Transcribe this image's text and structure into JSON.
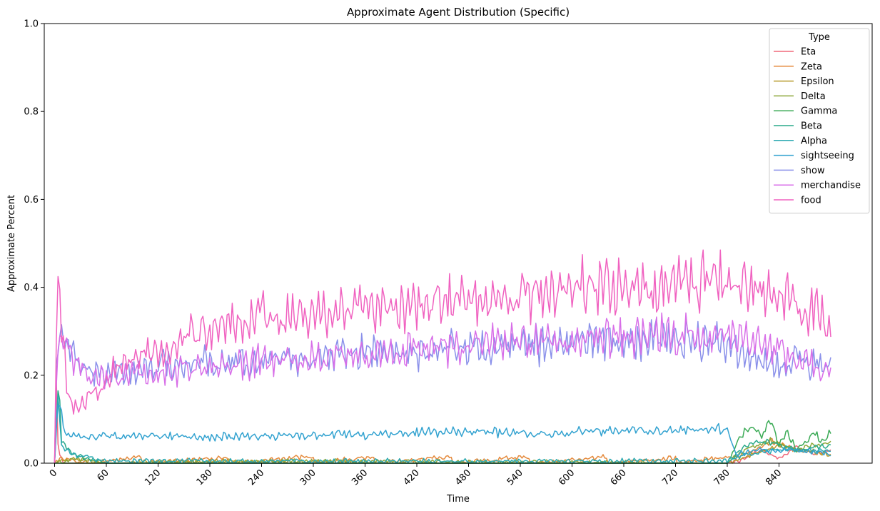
{
  "chart_data": {
    "type": "line",
    "title": "Approximate Agent Distribution (Specific)",
    "xlabel": "Time",
    "ylabel": "Approximate Percent",
    "xlim": [
      -12,
      948
    ],
    "ylim": [
      0,
      1
    ],
    "xticks": [
      0,
      60,
      120,
      180,
      240,
      300,
      360,
      420,
      480,
      540,
      600,
      660,
      720,
      780,
      840
    ],
    "yticks": [
      0.0,
      0.2,
      0.4,
      0.6,
      0.8,
      1.0
    ],
    "xtick_rotation": 45,
    "grid": false,
    "legend": {
      "title": "Type",
      "placement": "top-right"
    },
    "series": [
      {
        "name": "Eta",
        "color": "#f0687a",
        "points": [
          [
            0,
            0
          ],
          [
            1,
            0.3
          ],
          [
            3,
            0.05
          ],
          [
            6,
            0.02
          ],
          [
            10,
            0.0
          ],
          [
            60,
            0.0
          ],
          [
            780,
            0.0
          ],
          [
            800,
            0.01
          ],
          [
            820,
            0.03
          ],
          [
            840,
            0.01
          ],
          [
            860,
            0.04
          ],
          [
            880,
            0.02
          ],
          [
            900,
            0.03
          ]
        ]
      },
      {
        "name": "Zeta",
        "color": "#e58a3c",
        "points": [
          [
            0,
            0
          ],
          [
            5,
            0.01
          ],
          [
            40,
            0.0
          ],
          [
            100,
            0.015
          ],
          [
            101,
            0.0
          ],
          [
            200,
            0.012
          ],
          [
            201,
            0.0
          ],
          [
            300,
            0.015
          ],
          [
            301,
            0.0
          ],
          [
            370,
            0.015
          ],
          [
            371,
            0.0
          ],
          [
            460,
            0.015
          ],
          [
            461,
            0.0
          ],
          [
            550,
            0.015
          ],
          [
            551,
            0.0
          ],
          [
            640,
            0.015
          ],
          [
            641,
            0.0
          ],
          [
            720,
            0.012
          ],
          [
            721,
            0.0
          ],
          [
            800,
            0.02
          ],
          [
            830,
            0.05
          ],
          [
            860,
            0.03
          ],
          [
            900,
            0.02
          ]
        ]
      },
      {
        "name": "Epsilon",
        "color": "#b79a2a",
        "points": [
          [
            0,
            0
          ],
          [
            20,
            0.01
          ],
          [
            60,
            0.0
          ],
          [
            200,
            0.005
          ],
          [
            400,
            0.0
          ],
          [
            780,
            0.0
          ],
          [
            810,
            0.02
          ],
          [
            840,
            0.04
          ],
          [
            870,
            0.03
          ],
          [
            900,
            0.02
          ]
        ]
      },
      {
        "name": "Delta",
        "color": "#8da83a",
        "points": [
          [
            0,
            0
          ],
          [
            30,
            0.01
          ],
          [
            60,
            0.0
          ],
          [
            300,
            0.005
          ],
          [
            780,
            0.0
          ],
          [
            800,
            0.03
          ],
          [
            830,
            0.05
          ],
          [
            860,
            0.03
          ],
          [
            900,
            0.05
          ]
        ]
      },
      {
        "name": "Gamma",
        "color": "#3aaa55",
        "points": [
          [
            0,
            0
          ],
          [
            780,
            0.0
          ],
          [
            790,
            0.04
          ],
          [
            800,
            0.07
          ],
          [
            810,
            0.08
          ],
          [
            820,
            0.06
          ],
          [
            830,
            0.1
          ],
          [
            840,
            0.04
          ],
          [
            850,
            0.07
          ],
          [
            860,
            0.03
          ],
          [
            870,
            0.05
          ],
          [
            880,
            0.07
          ],
          [
            890,
            0.05
          ],
          [
            900,
            0.07
          ]
        ]
      },
      {
        "name": "Beta",
        "color": "#2aaa8a",
        "points": [
          [
            0,
            0
          ],
          [
            5,
            0.2
          ],
          [
            8,
            0.05
          ],
          [
            20,
            0.02
          ],
          [
            60,
            0.0
          ],
          [
            780,
            0.0
          ],
          [
            800,
            0.04
          ],
          [
            830,
            0.05
          ],
          [
            860,
            0.03
          ],
          [
            900,
            0.04
          ]
        ]
      },
      {
        "name": "Alpha",
        "color": "#2aa8b0",
        "points": [
          [
            0,
            0
          ],
          [
            4,
            0.15
          ],
          [
            8,
            0.04
          ],
          [
            20,
            0.02
          ],
          [
            60,
            0.005
          ],
          [
            780,
            0.005
          ],
          [
            800,
            0.02
          ],
          [
            840,
            0.03
          ],
          [
            900,
            0.03
          ]
        ]
      },
      {
        "name": "sightseeing",
        "color": "#32a2d0",
        "points": [
          [
            0,
            0
          ],
          [
            3,
            0.13
          ],
          [
            8,
            0.11
          ],
          [
            15,
            0.06
          ],
          [
            30,
            0.06
          ],
          [
            60,
            0.06
          ],
          [
            120,
            0.06
          ],
          [
            180,
            0.06
          ],
          [
            240,
            0.06
          ],
          [
            300,
            0.065
          ],
          [
            360,
            0.065
          ],
          [
            420,
            0.07
          ],
          [
            480,
            0.07
          ],
          [
            540,
            0.07
          ],
          [
            600,
            0.07
          ],
          [
            660,
            0.075
          ],
          [
            720,
            0.075
          ],
          [
            780,
            0.08
          ],
          [
            790,
            0.02
          ],
          [
            820,
            0.03
          ],
          [
            860,
            0.03
          ],
          [
            900,
            0.02
          ]
        ]
      },
      {
        "name": "show",
        "color": "#8a90ea",
        "points": [
          [
            0,
            0
          ],
          [
            2,
            0.25
          ],
          [
            5,
            0.3
          ],
          [
            10,
            0.28
          ],
          [
            20,
            0.25
          ],
          [
            30,
            0.22
          ],
          [
            45,
            0.2
          ],
          [
            60,
            0.2
          ],
          [
            90,
            0.21
          ],
          [
            120,
            0.22
          ],
          [
            150,
            0.22
          ],
          [
            180,
            0.23
          ],
          [
            210,
            0.23
          ],
          [
            240,
            0.235
          ],
          [
            270,
            0.24
          ],
          [
            300,
            0.24
          ],
          [
            330,
            0.25
          ],
          [
            360,
            0.25
          ],
          [
            390,
            0.25
          ],
          [
            420,
            0.255
          ],
          [
            450,
            0.26
          ],
          [
            480,
            0.26
          ],
          [
            510,
            0.265
          ],
          [
            540,
            0.27
          ],
          [
            570,
            0.27
          ],
          [
            600,
            0.275
          ],
          [
            630,
            0.28
          ],
          [
            660,
            0.28
          ],
          [
            690,
            0.285
          ],
          [
            720,
            0.285
          ],
          [
            750,
            0.28
          ],
          [
            780,
            0.275
          ],
          [
            800,
            0.25
          ],
          [
            820,
            0.24
          ],
          [
            840,
            0.23
          ],
          [
            860,
            0.23
          ],
          [
            880,
            0.225
          ],
          [
            900,
            0.215
          ]
        ]
      },
      {
        "name": "merchandise",
        "color": "#d86ee8",
        "points": [
          [
            0,
            0
          ],
          [
            2,
            0.2
          ],
          [
            5,
            0.28
          ],
          [
            10,
            0.27
          ],
          [
            20,
            0.24
          ],
          [
            30,
            0.22
          ],
          [
            45,
            0.19
          ],
          [
            60,
            0.19
          ],
          [
            90,
            0.2
          ],
          [
            120,
            0.21
          ],
          [
            150,
            0.215
          ],
          [
            180,
            0.22
          ],
          [
            210,
            0.225
          ],
          [
            240,
            0.23
          ],
          [
            270,
            0.235
          ],
          [
            300,
            0.24
          ],
          [
            330,
            0.245
          ],
          [
            360,
            0.25
          ],
          [
            390,
            0.255
          ],
          [
            420,
            0.26
          ],
          [
            450,
            0.265
          ],
          [
            480,
            0.265
          ],
          [
            510,
            0.27
          ],
          [
            540,
            0.275
          ],
          [
            570,
            0.275
          ],
          [
            600,
            0.28
          ],
          [
            630,
            0.285
          ],
          [
            660,
            0.29
          ],
          [
            690,
            0.29
          ],
          [
            720,
            0.29
          ],
          [
            750,
            0.29
          ],
          [
            780,
            0.295
          ],
          [
            800,
            0.29
          ],
          [
            820,
            0.27
          ],
          [
            840,
            0.25
          ],
          [
            860,
            0.23
          ],
          [
            880,
            0.22
          ],
          [
            900,
            0.21
          ]
        ]
      },
      {
        "name": "food",
        "color": "#f062c0",
        "points": [
          [
            0,
            0
          ],
          [
            1,
            0.25
          ],
          [
            3,
            0.37
          ],
          [
            6,
            0.38
          ],
          [
            10,
            0.3
          ],
          [
            15,
            0.15
          ],
          [
            25,
            0.13
          ],
          [
            35,
            0.14
          ],
          [
            50,
            0.17
          ],
          [
            60,
            0.19
          ],
          [
            75,
            0.22
          ],
          [
            90,
            0.24
          ],
          [
            120,
            0.26
          ],
          [
            150,
            0.28
          ],
          [
            180,
            0.31
          ],
          [
            210,
            0.32
          ],
          [
            240,
            0.33
          ],
          [
            270,
            0.335
          ],
          [
            300,
            0.34
          ],
          [
            330,
            0.345
          ],
          [
            360,
            0.35
          ],
          [
            390,
            0.355
          ],
          [
            420,
            0.36
          ],
          [
            450,
            0.365
          ],
          [
            480,
            0.37
          ],
          [
            510,
            0.375
          ],
          [
            540,
            0.38
          ],
          [
            570,
            0.39
          ],
          [
            600,
            0.4
          ],
          [
            630,
            0.4
          ],
          [
            660,
            0.395
          ],
          [
            690,
            0.395
          ],
          [
            720,
            0.41
          ],
          [
            750,
            0.41
          ],
          [
            780,
            0.42
          ],
          [
            800,
            0.42
          ],
          [
            820,
            0.4
          ],
          [
            840,
            0.375
          ],
          [
            860,
            0.36
          ],
          [
            880,
            0.35
          ],
          [
            900,
            0.32
          ]
        ]
      }
    ]
  }
}
